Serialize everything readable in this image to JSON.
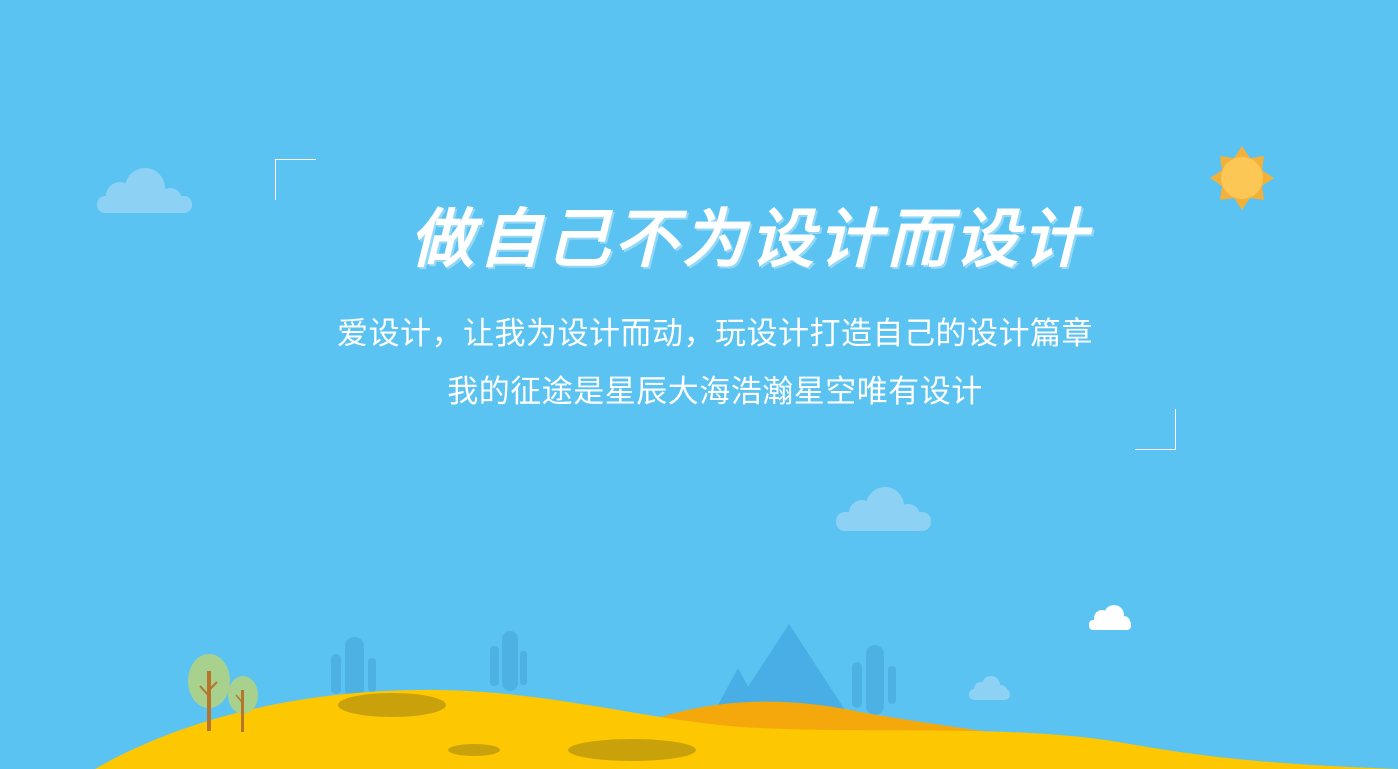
{
  "banner": {
    "headline": "做自己不为设计而设计",
    "tagline_1": "爱设计，让我为设计而动，玩设计打造自己的设计篇章",
    "tagline_2": "我的征途是星辰大海浩瀚星空唯有设计"
  },
  "colors": {
    "sky": "#5bc3f2",
    "cloud": "#8dd2f4",
    "cloud_white": "#ffffff",
    "sun": "#fcc755",
    "sun_rays": "#f2b13a",
    "hill_front": "#fdc701",
    "hill_back": "#f5a80c",
    "hill_shadow": "#c9a10a",
    "tree_leaf": "#a9d18e",
    "tree_trunk": "#b5752a",
    "cactus": "#4eb1e4",
    "mountain": "#49aee5"
  },
  "icons": [
    "cloud-icon",
    "sun-icon",
    "tree-icon",
    "cactus-icon",
    "mountain-icon"
  ]
}
